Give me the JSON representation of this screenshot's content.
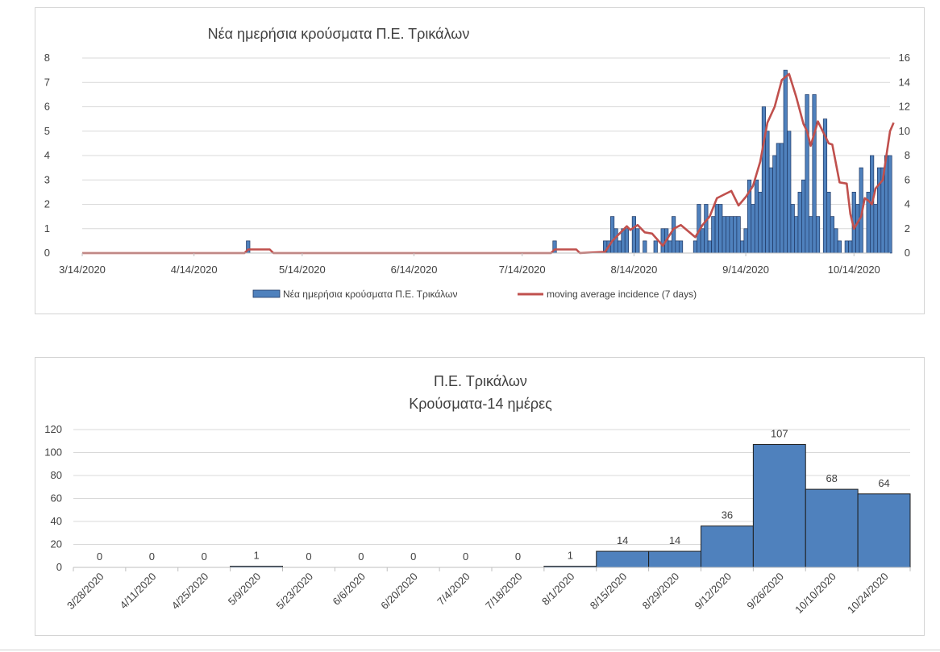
{
  "chart_data": [
    {
      "type": "bar",
      "title": "Νέα ημερήσια κρούσματα Π.Ε. Τρικάλων",
      "x_range": [
        "3/14/2020",
        "10/24/2020"
      ],
      "x_ticks": [
        "3/14/2020",
        "4/14/2020",
        "5/14/2020",
        "6/14/2020",
        "7/14/2020",
        "8/14/2020",
        "9/14/2020",
        "10/14/2020"
      ],
      "y_left_ticks": [
        "0",
        "1",
        "2",
        "3",
        "4",
        "5",
        "6",
        "7",
        "8"
      ],
      "y_left_range": [
        0,
        8
      ],
      "y_right_ticks": [
        "0",
        "2",
        "4",
        "6",
        "8",
        "10",
        "12",
        "14",
        "16"
      ],
      "y_right_range": [
        0,
        16
      ],
      "legend": [
        {
          "label": "Νέα ημερήσια κρούσματα Π.Ε. Τρικάλων",
          "color": "#4f81bd"
        },
        {
          "label": "moving average incidence (7 days)",
          "color": "#c0504d"
        }
      ],
      "legend_position": "bottom",
      "series": [
        {
          "name": "Νέα ημερήσια κρούσματα Π.Ε. Τρικάλων",
          "axis": "left",
          "color": "#4f81bd",
          "points": [
            [
              "2020-04-29",
              0.5
            ],
            [
              "2020-07-23",
              0.5
            ],
            [
              "2020-08-06",
              0.5
            ],
            [
              "2020-08-07",
              0.5
            ],
            [
              "2020-08-08",
              1.5
            ],
            [
              "2020-08-09",
              1
            ],
            [
              "2020-08-10",
              0.5
            ],
            [
              "2020-08-11",
              1
            ],
            [
              "2020-08-12",
              1
            ],
            [
              "2020-08-14",
              1.5
            ],
            [
              "2020-08-15",
              1
            ],
            [
              "2020-08-17",
              0.5
            ],
            [
              "2020-08-20",
              0.5
            ],
            [
              "2020-08-22",
              1
            ],
            [
              "2020-08-23",
              1
            ],
            [
              "2020-08-24",
              0.5
            ],
            [
              "2020-08-25",
              1.5
            ],
            [
              "2020-08-26",
              0.5
            ],
            [
              "2020-08-27",
              0.5
            ],
            [
              "2020-08-31",
              0.5
            ],
            [
              "2020-09-01",
              2
            ],
            [
              "2020-09-02",
              1
            ],
            [
              "2020-09-03",
              2
            ],
            [
              "2020-09-04",
              0.5
            ],
            [
              "2020-09-05",
              1.5
            ],
            [
              "2020-09-06",
              2
            ],
            [
              "2020-09-07",
              2
            ],
            [
              "2020-09-08",
              1.5
            ],
            [
              "2020-09-09",
              1.5
            ],
            [
              "2020-09-10",
              1.5
            ],
            [
              "2020-09-11",
              1.5
            ],
            [
              "2020-09-12",
              1.5
            ],
            [
              "2020-09-13",
              0.5
            ],
            [
              "2020-09-14",
              1
            ],
            [
              "2020-09-15",
              3
            ],
            [
              "2020-09-16",
              2
            ],
            [
              "2020-09-17",
              3
            ],
            [
              "2020-09-18",
              2.5
            ],
            [
              "2020-09-19",
              6
            ],
            [
              "2020-09-20",
              5
            ],
            [
              "2020-09-21",
              3.5
            ],
            [
              "2020-09-22",
              4
            ],
            [
              "2020-09-23",
              4.5
            ],
            [
              "2020-09-24",
              4.5
            ],
            [
              "2020-09-25",
              7.5
            ],
            [
              "2020-09-26",
              5
            ],
            [
              "2020-09-27",
              2
            ],
            [
              "2020-09-28",
              1.5
            ],
            [
              "2020-09-29",
              2.5
            ],
            [
              "2020-09-30",
              3
            ],
            [
              "2020-10-01",
              6.5
            ],
            [
              "2020-10-02",
              1.5
            ],
            [
              "2020-10-03",
              6.5
            ],
            [
              "2020-10-04",
              1.5
            ],
            [
              "2020-10-06",
              5.5
            ],
            [
              "2020-10-07",
              2.5
            ],
            [
              "2020-10-08",
              1.5
            ],
            [
              "2020-10-09",
              1
            ],
            [
              "2020-10-10",
              0.5
            ],
            [
              "2020-10-12",
              0.5
            ],
            [
              "2020-10-13",
              0.5
            ],
            [
              "2020-10-14",
              2.5
            ],
            [
              "2020-10-15",
              2
            ],
            [
              "2020-10-16",
              3.5
            ],
            [
              "2020-10-18",
              2.5
            ],
            [
              "2020-10-19",
              4
            ],
            [
              "2020-10-20",
              2
            ],
            [
              "2020-10-21",
              3.5
            ],
            [
              "2020-10-22",
              3.5
            ],
            [
              "2020-10-23",
              4
            ],
            [
              "2020-10-24",
              4
            ]
          ]
        },
        {
          "name": "moving average incidence (7 days)",
          "axis": "right",
          "color": "#c0504d",
          "points": [
            [
              "2020-03-14",
              0
            ],
            [
              "2020-04-28",
              0
            ],
            [
              "2020-04-29",
              0.3
            ],
            [
              "2020-05-05",
              0.3
            ],
            [
              "2020-05-06",
              0
            ],
            [
              "2020-07-22",
              0
            ],
            [
              "2020-07-23",
              0.3
            ],
            [
              "2020-07-29",
              0.3
            ],
            [
              "2020-07-30",
              0
            ],
            [
              "2020-08-06",
              0.1
            ],
            [
              "2020-08-08",
              1.0
            ],
            [
              "2020-08-10",
              1.6
            ],
            [
              "2020-08-12",
              2.2
            ],
            [
              "2020-08-13",
              1.9
            ],
            [
              "2020-08-15",
              2.3
            ],
            [
              "2020-08-17",
              1.7
            ],
            [
              "2020-08-19",
              1.6
            ],
            [
              "2020-08-22",
              0.6
            ],
            [
              "2020-08-25",
              2.0
            ],
            [
              "2020-08-27",
              2.3
            ],
            [
              "2020-08-29",
              1.8
            ],
            [
              "2020-08-31",
              1.3
            ],
            [
              "2020-09-02",
              2.3
            ],
            [
              "2020-09-04",
              3.0
            ],
            [
              "2020-09-06",
              4.5
            ],
            [
              "2020-09-08",
              4.8
            ],
            [
              "2020-09-10",
              5.1
            ],
            [
              "2020-09-12",
              3.9
            ],
            [
              "2020-09-14",
              4.6
            ],
            [
              "2020-09-16",
              5.5
            ],
            [
              "2020-09-18",
              7.5
            ],
            [
              "2020-09-20",
              10.7
            ],
            [
              "2020-09-22",
              12.0
            ],
            [
              "2020-09-24",
              14.2
            ],
            [
              "2020-09-26",
              14.7
            ],
            [
              "2020-09-28",
              12.8
            ],
            [
              "2020-09-30",
              10.6
            ],
            [
              "2020-10-01",
              10.0
            ],
            [
              "2020-10-02",
              8.8
            ],
            [
              "2020-10-04",
              10.8
            ],
            [
              "2020-10-06",
              9.6
            ],
            [
              "2020-10-07",
              9.0
            ],
            [
              "2020-10-08",
              8.9
            ],
            [
              "2020-10-10",
              5.8
            ],
            [
              "2020-10-12",
              5.7
            ],
            [
              "2020-10-13",
              3.2
            ],
            [
              "2020-10-14",
              2.0
            ],
            [
              "2020-10-16",
              3.0
            ],
            [
              "2020-10-17",
              4.5
            ],
            [
              "2020-10-18",
              4.3
            ],
            [
              "2020-10-19",
              4.0
            ],
            [
              "2020-10-20",
              5.3
            ],
            [
              "2020-10-22",
              6.0
            ],
            [
              "2020-10-23",
              8.0
            ],
            [
              "2020-10-24",
              10.0
            ],
            [
              "2020-10-25",
              10.7
            ]
          ]
        }
      ]
    },
    {
      "type": "bar",
      "title": "Π.Ε. Τρικάλων",
      "subtitle": "Κρούσματα-14 ημέρες",
      "categories": [
        "3/28/2020",
        "4/11/2020",
        "4/25/2020",
        "5/9/2020",
        "5/23/2020",
        "6/6/2020",
        "6/20/2020",
        "7/4/2020",
        "7/18/2020",
        "8/1/2020",
        "8/15/2020",
        "8/29/2020",
        "9/12/2020",
        "9/26/2020",
        "10/10/2020",
        "10/24/2020"
      ],
      "values": [
        0,
        0,
        0,
        1,
        0,
        0,
        0,
        0,
        0,
        1,
        14,
        14,
        36,
        107,
        68,
        64
      ],
      "y_ticks": [
        "0",
        "20",
        "40",
        "60",
        "80",
        "100",
        "120"
      ],
      "ylim": [
        0,
        120
      ],
      "data_labels": true,
      "color": "#4f81bd",
      "grid": true
    }
  ]
}
